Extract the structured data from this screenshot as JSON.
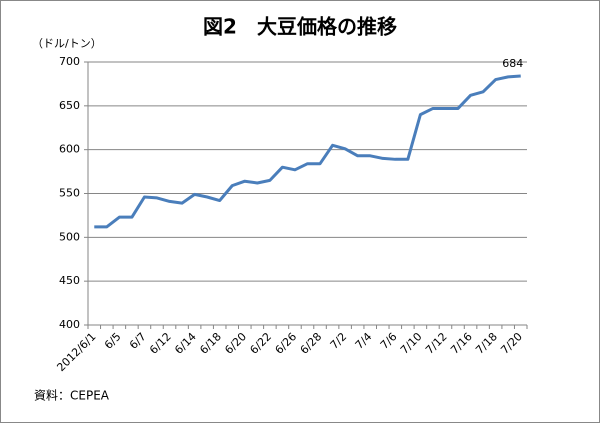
{
  "chart_data": {
    "type": "line",
    "title": "図2　大豆価格の推移",
    "y_label": "（ドル/トン）",
    "source": "資料：CEPEA",
    "categories": [
      "2012/6/1",
      null,
      "6/5",
      null,
      "6/7",
      null,
      "6/12",
      null,
      "6/14",
      null,
      "6/18",
      null,
      "6/20",
      null,
      "6/22",
      null,
      "6/26",
      null,
      "6/28",
      null,
      "7/2",
      null,
      "7/4",
      null,
      "7/6",
      null,
      "7/10",
      null,
      "7/12",
      null,
      "7/16",
      null,
      "7/18",
      null,
      "7/20"
    ],
    "series": [
      {
        "name": "大豆価格",
        "color": "#4a7ebb",
        "values": [
          512,
          512,
          523,
          523,
          546,
          545,
          541,
          539,
          549,
          546,
          542,
          559,
          564,
          562,
          565,
          580,
          577,
          584,
          584,
          605,
          601,
          593,
          593,
          590,
          589,
          589,
          640,
          647,
          647,
          647,
          662,
          666,
          680,
          683,
          684
        ]
      }
    ],
    "ylim": [
      400,
      700
    ],
    "yticks": [
      400,
      450,
      500,
      550,
      600,
      650,
      700
    ],
    "grid": true
  }
}
